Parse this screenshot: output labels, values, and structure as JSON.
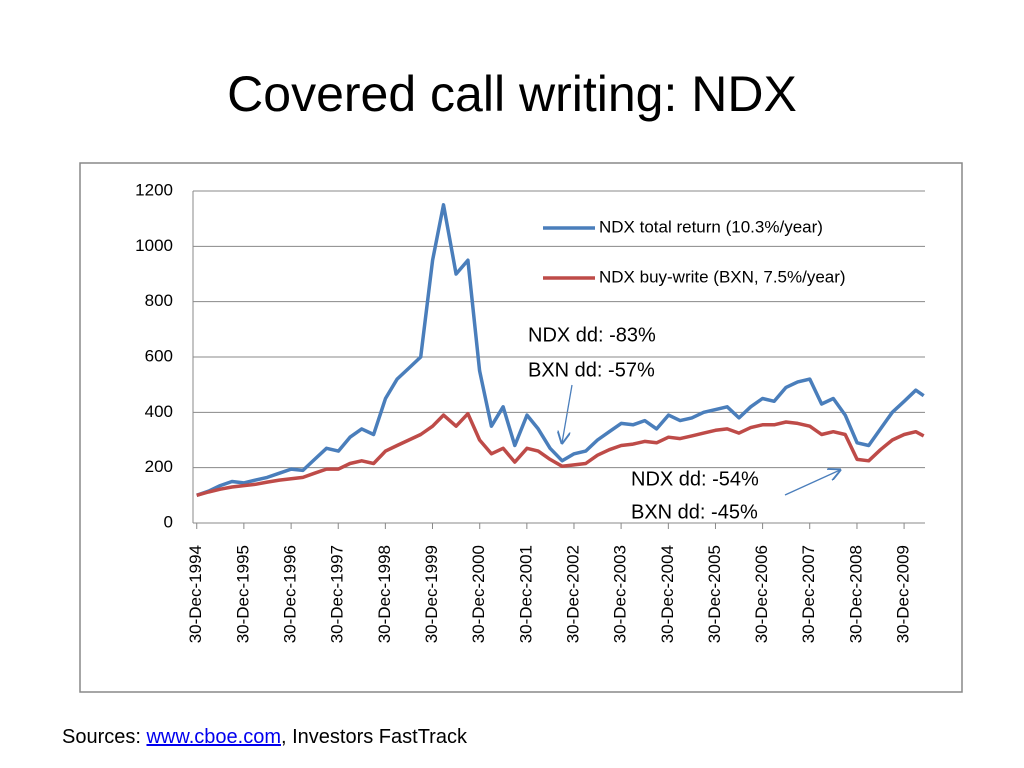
{
  "chart_data": {
    "type": "line",
    "title": "Covered call writing: NDX",
    "x": [
      "1994-12-30",
      "1995-03-31",
      "1995-06-30",
      "1995-09-29",
      "1995-12-29",
      "1996-03-29",
      "1996-06-28",
      "1996-09-30",
      "1996-12-31",
      "1997-03-31",
      "1997-06-30",
      "1997-09-30",
      "1997-12-31",
      "1998-03-31",
      "1998-06-30",
      "1998-09-30",
      "1998-12-31",
      "1999-03-31",
      "1999-06-30",
      "1999-09-30",
      "1999-12-31",
      "2000-03-24",
      "2000-06-30",
      "2000-09-29",
      "2000-12-29",
      "2001-03-30",
      "2001-06-29",
      "2001-09-28",
      "2001-12-31",
      "2002-03-28",
      "2002-06-28",
      "2002-09-30",
      "2002-12-31",
      "2003-03-31",
      "2003-06-30",
      "2003-09-30",
      "2003-12-31",
      "2004-03-31",
      "2004-06-30",
      "2004-09-30",
      "2004-12-31",
      "2005-03-31",
      "2005-06-30",
      "2005-09-30",
      "2005-12-30",
      "2006-03-31",
      "2006-06-30",
      "2006-09-29",
      "2006-12-29",
      "2007-03-30",
      "2007-06-29",
      "2007-09-28",
      "2007-12-31",
      "2008-03-31",
      "2008-06-30",
      "2008-09-30",
      "2008-12-31",
      "2009-03-31",
      "2009-06-30",
      "2009-09-30",
      "2009-12-31",
      "2010-03-31",
      "2010-05-31"
    ],
    "series": [
      {
        "name": "NDX total return (10.3%/year)",
        "color": "#4a7ebb",
        "values": [
          100,
          115,
          135,
          150,
          145,
          155,
          165,
          180,
          195,
          190,
          230,
          270,
          260,
          310,
          340,
          320,
          450,
          520,
          560,
          600,
          950,
          1150,
          900,
          950,
          550,
          350,
          420,
          280,
          390,
          340,
          270,
          225,
          250,
          260,
          300,
          330,
          360,
          355,
          370,
          340,
          390,
          370,
          380,
          400,
          410,
          420,
          380,
          420,
          450,
          440,
          490,
          510,
          520,
          430,
          450,
          390,
          290,
          280,
          340,
          400,
          440,
          480,
          460
        ]
      },
      {
        "name": "NDX buy-write (BXN, 7.5%/year)",
        "color": "#be4b48",
        "values": [
          100,
          112,
          122,
          130,
          135,
          140,
          148,
          155,
          160,
          165,
          180,
          195,
          195,
          215,
          225,
          215,
          260,
          280,
          300,
          320,
          350,
          390,
          350,
          395,
          300,
          250,
          270,
          220,
          270,
          260,
          230,
          205,
          210,
          215,
          245,
          265,
          280,
          285,
          295,
          290,
          310,
          305,
          315,
          325,
          335,
          340,
          325,
          345,
          355,
          355,
          365,
          360,
          350,
          320,
          330,
          320,
          230,
          225,
          265,
          300,
          320,
          330,
          315
        ]
      }
    ],
    "xlim": [
      "1994-12-01",
      "2010-06-10"
    ],
    "xticks": [
      {
        "value": "1994-12-30",
        "label": "30-Dec-1994"
      },
      {
        "value": "1995-12-30",
        "label": "30-Dec-1995"
      },
      {
        "value": "1996-12-30",
        "label": "30-Dec-1996"
      },
      {
        "value": "1997-12-30",
        "label": "30-Dec-1997"
      },
      {
        "value": "1998-12-30",
        "label": "30-Dec-1998"
      },
      {
        "value": "1999-12-30",
        "label": "30-Dec-1999"
      },
      {
        "value": "2000-12-30",
        "label": "30-Dec-2000"
      },
      {
        "value": "2001-12-30",
        "label": "30-Dec-2001"
      },
      {
        "value": "2002-12-30",
        "label": "30-Dec-2002"
      },
      {
        "value": "2003-12-30",
        "label": "30-Dec-2003"
      },
      {
        "value": "2004-12-30",
        "label": "30-Dec-2004"
      },
      {
        "value": "2005-12-30",
        "label": "30-Dec-2005"
      },
      {
        "value": "2006-12-30",
        "label": "30-Dec-2006"
      },
      {
        "value": "2007-12-30",
        "label": "30-Dec-2007"
      },
      {
        "value": "2008-12-30",
        "label": "30-Dec-2008"
      },
      {
        "value": "2009-12-30",
        "label": "30-Dec-2009"
      }
    ],
    "ylim": [
      0,
      1200
    ],
    "yticks": [
      0,
      200,
      400,
      600,
      800,
      1000,
      1200
    ],
    "grid": true,
    "legend": "upper right",
    "annotations": [
      "NDX dd: -83%",
      "BXN dd: -57%",
      "NDX dd: -54%",
      "BXN dd: -45%"
    ]
  },
  "sources": {
    "prefix": "Sources: ",
    "link": "www.cboe.com",
    "suffix": ", Investors FastTrack"
  }
}
